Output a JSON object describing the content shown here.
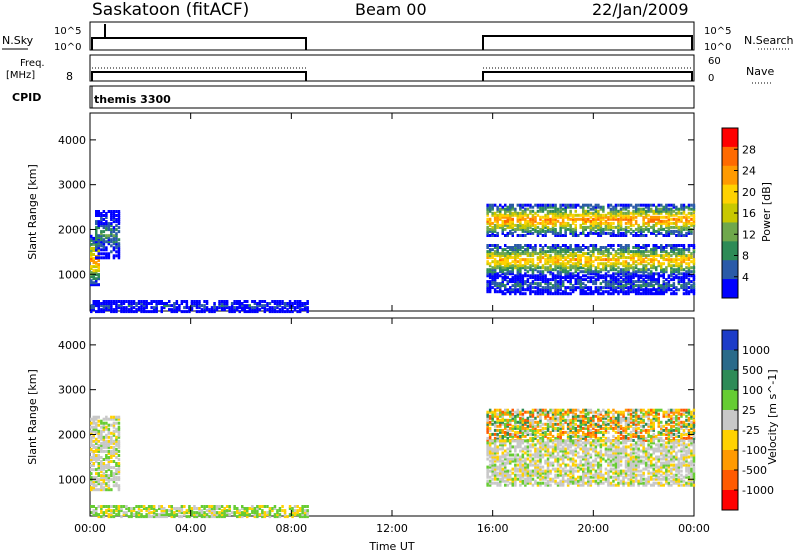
{
  "header": {
    "station_title": "Saskatoon (fitACF)",
    "beam_title": "Beam 00",
    "date_title": "22/Jan/2009"
  },
  "panels": {
    "nsky": {
      "left_label": "N.Sky",
      "ticks": [
        "10^5",
        "10^0"
      ],
      "right_label": "N.Search",
      "right_ticks": [
        "10^5",
        "10^0"
      ]
    },
    "freq": {
      "left_label_top": "Freq.",
      "left_label_bottom": "[MHz]",
      "left_tick": "8",
      "right_label": "Nave",
      "right_ticks": [
        "60",
        "0"
      ]
    },
    "cpid": {
      "left_label": "CPID",
      "program_label": "themis 3300"
    }
  },
  "chart_data": [
    {
      "type": "heatmap",
      "title": "",
      "xlabel": "Time UT",
      "ylabel": "Slant Range [km]",
      "xlim": [
        0,
        24
      ],
      "ylim": [
        180,
        4600
      ],
      "x_tick_labels": [
        "00:00",
        "04:00",
        "08:00",
        "12:00",
        "16:00",
        "20:00",
        "00:00"
      ],
      "y_tick_labels": [
        "1000",
        "2000",
        "3000",
        "4000"
      ],
      "colorbar": {
        "label": "Power [dB]",
        "tick_labels": [
          "28",
          "24",
          "20",
          "16",
          "12",
          "8",
          "4"
        ],
        "colors": [
          "#ff0000",
          "#ff6a00",
          "#ff9a00",
          "#ffd200",
          "#c8c800",
          "#6fa84c",
          "#2e8b57",
          "#2a5aa8",
          "#0000ff"
        ]
      },
      "data_intervals_ut": [
        [
          0.0,
          8.65
        ],
        [
          15.75,
          24.0
        ]
      ],
      "bands": [
        {
          "t0": 0.0,
          "t1": 0.35,
          "r0": 800,
          "r1": 1900,
          "peak_level": 28
        },
        {
          "t0": 0.2,
          "t1": 1.1,
          "r0": 1400,
          "r1": 2450,
          "peak_level": 14
        },
        {
          "t0": 0.0,
          "t1": 8.65,
          "r0": 200,
          "r1": 450,
          "peak_level": 10
        },
        {
          "t0": 15.75,
          "t1": 24.0,
          "r0": 1900,
          "r1": 2600,
          "peak_level": 28
        },
        {
          "t0": 15.75,
          "t1": 24.0,
          "r0": 1000,
          "r1": 1700,
          "peak_level": 26
        },
        {
          "t0": 15.75,
          "t1": 24.0,
          "r0": 600,
          "r1": 1000,
          "peak_level": 12
        }
      ]
    },
    {
      "type": "heatmap",
      "title": "",
      "xlabel": "Time UT",
      "ylabel": "Slant Range [km]",
      "xlim": [
        0,
        24
      ],
      "ylim": [
        180,
        4600
      ],
      "x_tick_labels": [
        "00:00",
        "04:00",
        "08:00",
        "12:00",
        "16:00",
        "20:00",
        "00:00"
      ],
      "y_tick_labels": [
        "1000",
        "2000",
        "3000",
        "4000"
      ],
      "colorbar": {
        "label": "Velocity [m s^-1]",
        "tick_labels": [
          "1000",
          "500",
          "100",
          "25",
          "-25",
          "-100",
          "-500",
          "-1000"
        ],
        "colors": [
          "#1c3cc8",
          "#2a6a8a",
          "#2e8b57",
          "#66cc33",
          "#c8c8c8",
          "#ffd200",
          "#ff9a00",
          "#ff5a00",
          "#ff0000"
        ]
      },
      "data_intervals_ut": [
        [
          0.0,
          8.65
        ],
        [
          15.75,
          24.0
        ]
      ],
      "bands": [
        {
          "t0": 0.0,
          "t1": 1.1,
          "r0": 800,
          "r1": 2450,
          "class": "gray"
        },
        {
          "t0": 0.0,
          "t1": 8.65,
          "r0": 200,
          "r1": 450,
          "class": "green"
        },
        {
          "t0": 15.75,
          "t1": 24.0,
          "r0": 1900,
          "r1": 2600,
          "class": "orange"
        },
        {
          "t0": 15.75,
          "t1": 24.0,
          "r0": 900,
          "r1": 1900,
          "class": "gray"
        }
      ]
    }
  ]
}
